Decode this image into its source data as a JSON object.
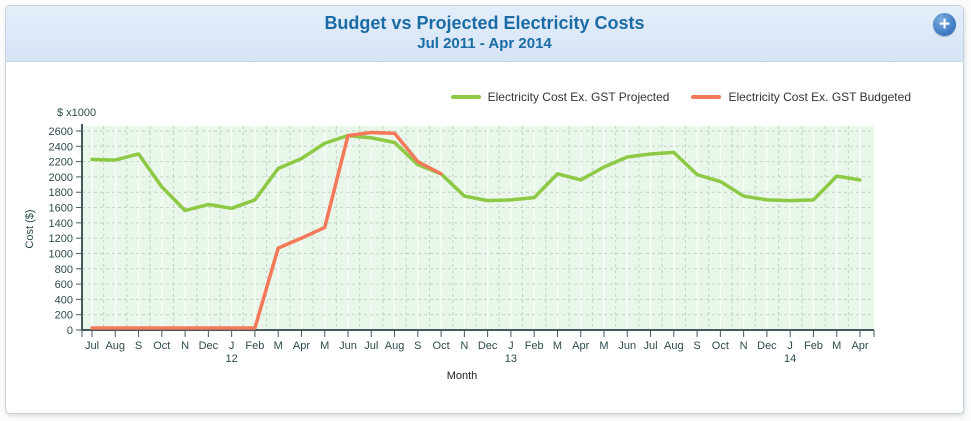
{
  "header": {
    "title": "Budget vs Projected Electricity Costs",
    "subtitle": "Jul 2011 - Apr 2014",
    "title_color": "#1b6ba5",
    "add_button": "+"
  },
  "legend": {
    "items": [
      {
        "label": "Electricity Cost Ex. GST Projected",
        "color": "#8dc944"
      },
      {
        "label": "Electricity Cost Ex. GST Budgeted",
        "color": "#f4785a"
      }
    ]
  },
  "chart_data": {
    "type": "line",
    "title": "Budget vs Projected Electricity Costs",
    "subtitle": "Jul 2011 - Apr 2014",
    "unit_label": "$ x1000",
    "ylabel": "Cost ($)",
    "xlabel": "Month",
    "ylim": [
      0,
      2600
    ],
    "ytick_step": 200,
    "grid": true,
    "legend_position": "top-right",
    "plot_bg": "#e8f7e9",
    "axis_color": "#435a5e",
    "grid_color": "#c6d2c6",
    "tick_label_color": "#2d4a4d",
    "categories": [
      "Jul",
      "Aug",
      "S",
      "Oct",
      "N",
      "Dec",
      "J",
      "Feb",
      "M",
      "Apr",
      "M",
      "Jun",
      "Jul",
      "Aug",
      "S",
      "Oct",
      "N",
      "Dec",
      "J",
      "Feb",
      "M",
      "Apr",
      "M",
      "Jun",
      "Jul",
      "Aug",
      "S",
      "Oct",
      "N",
      "Dec",
      "J",
      "Feb",
      "M",
      "Apr"
    ],
    "year_marks": {
      "6": "12",
      "18": "13",
      "30": "14"
    },
    "series": [
      {
        "name": "Electricity Cost Ex. GST Projected",
        "color": "#8dc944",
        "values": [
          2230,
          2220,
          2300,
          1870,
          1560,
          1640,
          1590,
          1700,
          2110,
          2240,
          2440,
          2540,
          2510,
          2450,
          2160,
          2040,
          1750,
          1690,
          1700,
          1730,
          2040,
          1960,
          2130,
          2260,
          2300,
          2320,
          2030,
          1940,
          1750,
          1700,
          1690,
          1700,
          2010,
          1960
        ]
      },
      {
        "name": "Electricity Cost Ex. GST Budgeted",
        "color": "#f4785a",
        "values": [
          0,
          0,
          0,
          0,
          0,
          0,
          0,
          0,
          1070,
          1200,
          1340,
          2540,
          2580,
          2570,
          2200,
          2040
        ]
      }
    ]
  }
}
